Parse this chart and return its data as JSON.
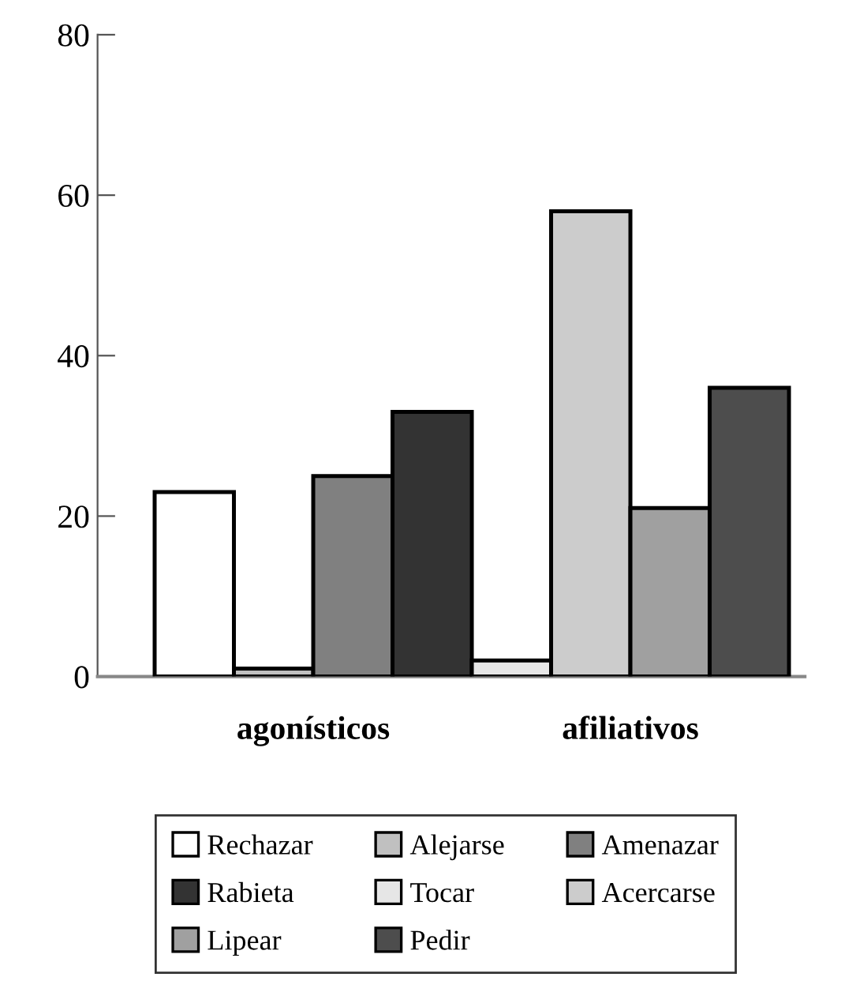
{
  "chart_data": {
    "type": "bar",
    "categories": [
      "agonísticos",
      "afiliativos"
    ],
    "series": [
      {
        "name": "Rechazar",
        "color": "#ffffff",
        "values": [
          23,
          null
        ]
      },
      {
        "name": "Alejarse",
        "color": "#c0c0c0",
        "values": [
          1,
          null
        ]
      },
      {
        "name": "Amenazar",
        "color": "#808080",
        "values": [
          25,
          null
        ]
      },
      {
        "name": "Rabieta",
        "color": "#333333",
        "values": [
          33,
          null
        ]
      },
      {
        "name": "Tocar",
        "color": "#e6e6e6",
        "values": [
          null,
          2
        ]
      },
      {
        "name": "Acercarse",
        "color": "#cccccc",
        "values": [
          null,
          58
        ]
      },
      {
        "name": "Lipear",
        "color": "#a0a0a0",
        "values": [
          null,
          21
        ]
      },
      {
        "name": "Pedir",
        "color": "#4d4d4d",
        "values": [
          null,
          36
        ]
      }
    ],
    "ylim": [
      0,
      80
    ],
    "yticks": [
      0,
      20,
      40,
      60,
      80
    ],
    "grid": false,
    "legend": "bottom"
  }
}
